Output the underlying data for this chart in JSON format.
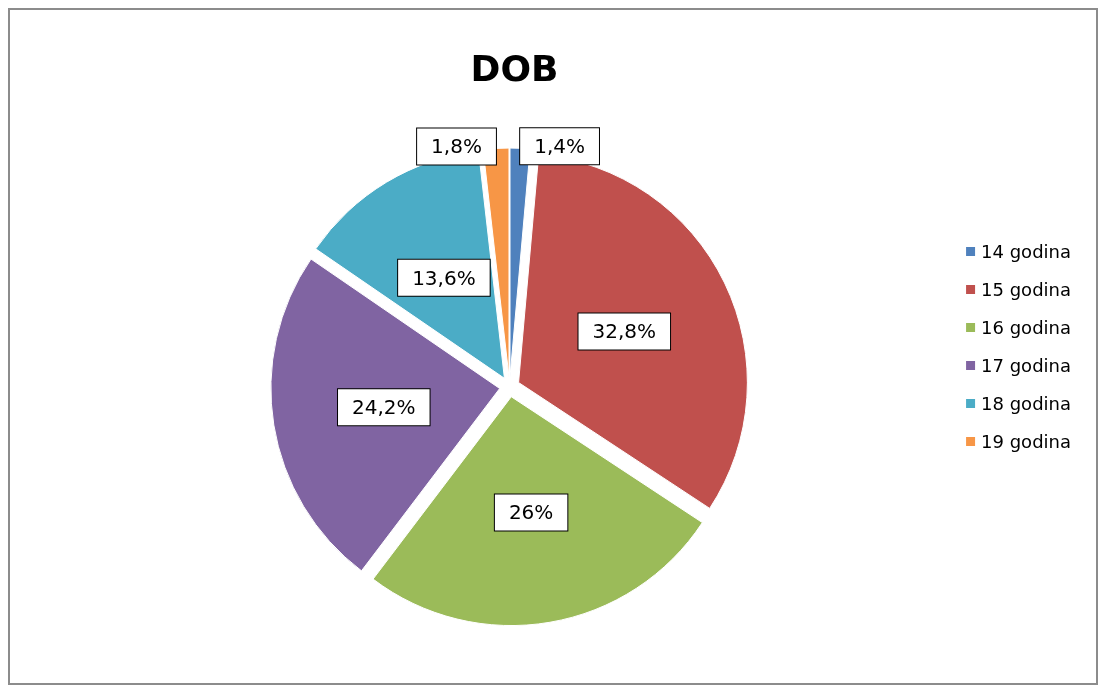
{
  "chart_data": {
    "type": "pie",
    "title": "DOB",
    "categories": [
      "14 godina",
      "15 godina",
      "16 godina",
      "17 godina",
      "18 godina",
      "19 godina"
    ],
    "values": [
      1.4,
      32.8,
      26,
      24.2,
      13.6,
      1.8
    ],
    "value_labels": [
      "1,4%",
      "32,8%",
      "26%",
      "24,2%",
      "13,6%",
      "1,8%"
    ],
    "colors": [
      "#4f81bd",
      "#c0504d",
      "#9bbb59",
      "#8064a2",
      "#4bacc6",
      "#f79646"
    ],
    "legend": "right"
  }
}
